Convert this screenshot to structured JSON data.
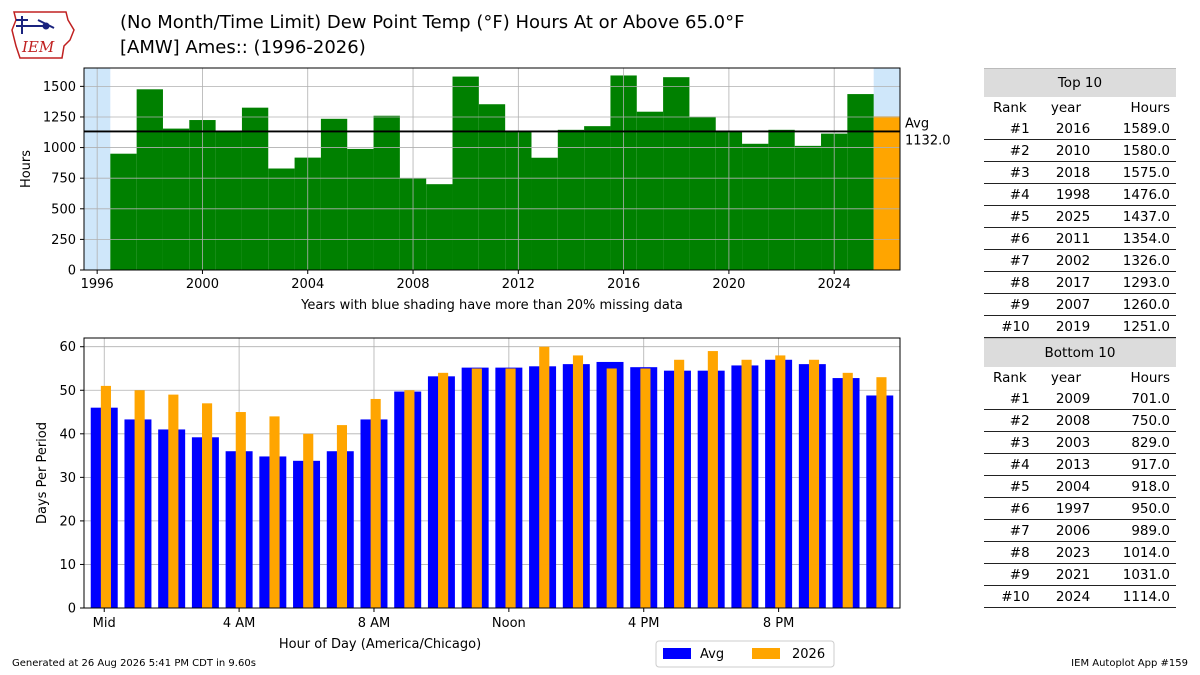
{
  "title_line1": "(No Month/Time Limit) Dew Point Temp (°F) Hours At or Above 65.0°F",
  "title_line2": "[AMW] Ames:: (1996-2026)",
  "logo_text": "IEM",
  "footer_left": "Generated at 26 Aug 2026 5:41 PM CDT in 9.60s",
  "footer_right": "IEM Autoplot App #159",
  "colors": {
    "year_bar": "#008000",
    "current_bar": "#ffa500",
    "missing_shade": "#cfe7fa",
    "hour_avg": "#0000ff",
    "hour_current": "#ffa500"
  },
  "chart_data": [
    {
      "type": "bar",
      "ylabel": "Hours",
      "xlabel": "Years with blue shading have more than 20% missing data",
      "ylim": [
        0,
        1650
      ],
      "xlim": [
        1995.5,
        2026.5
      ],
      "yticks": [
        0,
        250,
        500,
        750,
        1000,
        1250,
        1500
      ],
      "xticks": [
        1996,
        2000,
        2004,
        2008,
        2012,
        2016,
        2020,
        2024
      ],
      "grid": true,
      "years": [
        1996,
        1997,
        1998,
        1999,
        2000,
        2001,
        2002,
        2003,
        2004,
        2005,
        2006,
        2007,
        2008,
        2009,
        2010,
        2011,
        2012,
        2013,
        2014,
        2015,
        2016,
        2017,
        2018,
        2019,
        2020,
        2021,
        2022,
        2023,
        2024,
        2025,
        2026
      ],
      "values": [
        0,
        950,
        1476,
        1155,
        1225,
        1130,
        1326,
        829,
        918,
        1235,
        989,
        1260,
        750,
        701,
        1580,
        1354,
        1130,
        917,
        1145,
        1175,
        1589,
        1293,
        1575,
        1251,
        1130,
        1031,
        1145,
        1014,
        1114,
        1437,
        1255
      ],
      "missing_years": [
        1996,
        2026
      ],
      "highlight_year": 2026,
      "avg": 1132.0,
      "avg_label": "Avg",
      "avg_value_label": "1132.0"
    },
    {
      "type": "bar",
      "ylabel": "Days Per Period",
      "xlabel": "Hour of Day (America/Chicago)",
      "ylim": [
        0,
        62
      ],
      "yticks": [
        0,
        10,
        20,
        30,
        40,
        50,
        60
      ],
      "xtick_labels": [
        {
          "hour": 0,
          "label": "Mid"
        },
        {
          "hour": 4,
          "label": "4 AM"
        },
        {
          "hour": 8,
          "label": "8 AM"
        },
        {
          "hour": 12,
          "label": "Noon"
        },
        {
          "hour": 16,
          "label": "4 PM"
        },
        {
          "hour": 20,
          "label": "8 PM"
        }
      ],
      "grid": true,
      "series": [
        {
          "name": "Avg",
          "values": [
            46,
            43.3,
            41,
            39.2,
            36,
            34.8,
            33.8,
            36,
            43.3,
            49.7,
            53.2,
            55.2,
            55.2,
            55.5,
            56,
            56.5,
            55.3,
            54.5,
            54.5,
            55.7,
            57,
            56,
            52.8,
            48.8
          ]
        },
        {
          "name": "2026",
          "values": [
            51,
            50,
            49,
            47,
            45,
            44,
            40,
            42,
            48,
            50,
            54,
            55,
            55,
            60,
            58,
            55,
            55,
            57,
            59,
            57,
            58,
            57,
            54,
            53
          ]
        }
      ],
      "legend": "bottom-right"
    }
  ],
  "top10": {
    "title": "Top 10",
    "headers": [
      "Rank",
      "year",
      "Hours"
    ],
    "rows": [
      [
        "#1",
        "2016",
        "1589.0"
      ],
      [
        "#2",
        "2010",
        "1580.0"
      ],
      [
        "#3",
        "2018",
        "1575.0"
      ],
      [
        "#4",
        "1998",
        "1476.0"
      ],
      [
        "#5",
        "2025",
        "1437.0"
      ],
      [
        "#6",
        "2011",
        "1354.0"
      ],
      [
        "#7",
        "2002",
        "1326.0"
      ],
      [
        "#8",
        "2017",
        "1293.0"
      ],
      [
        "#9",
        "2007",
        "1260.0"
      ],
      [
        "#10",
        "2019",
        "1251.0"
      ]
    ]
  },
  "bottom10": {
    "title": "Bottom 10",
    "headers": [
      "Rank",
      "year",
      "Hours"
    ],
    "rows": [
      [
        "#1",
        "2009",
        "701.0"
      ],
      [
        "#2",
        "2008",
        "750.0"
      ],
      [
        "#3",
        "2003",
        "829.0"
      ],
      [
        "#4",
        "2013",
        "917.0"
      ],
      [
        "#5",
        "2004",
        "918.0"
      ],
      [
        "#6",
        "1997",
        "950.0"
      ],
      [
        "#7",
        "2006",
        "989.0"
      ],
      [
        "#8",
        "2023",
        "1014.0"
      ],
      [
        "#9",
        "2021",
        "1031.0"
      ],
      [
        "#10",
        "2024",
        "1114.0"
      ]
    ]
  }
}
